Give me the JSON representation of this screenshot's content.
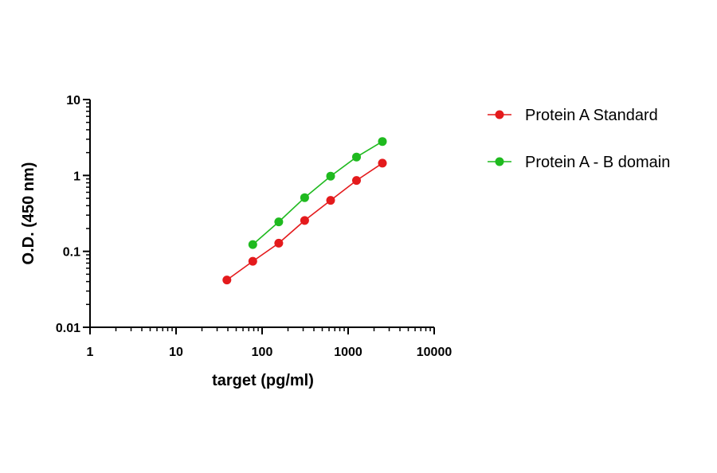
{
  "chart_data": {
    "type": "line",
    "title": "",
    "xlabel": "target (pg/ml)",
    "ylabel": "O.D. (450 nm)",
    "x_scale": "log",
    "y_scale": "log",
    "xlim": [
      1,
      10000
    ],
    "ylim": [
      0.01,
      10
    ],
    "x_ticks": [
      "1",
      "10",
      "100",
      "1000",
      "10000"
    ],
    "y_ticks": [
      "0.01",
      "0.1",
      "1",
      "10"
    ],
    "grid": false,
    "legend_position": "right",
    "series": [
      {
        "name": "Protein A Standard",
        "color": "#e41a1c",
        "x": [
          39,
          78,
          156,
          312,
          625,
          1250,
          2500
        ],
        "y": [
          0.042,
          0.074,
          0.128,
          0.255,
          0.47,
          0.86,
          1.45
        ]
      },
      {
        "name": "Protein A - B domain",
        "color": "#1fba1f",
        "x": [
          78,
          156,
          312,
          625,
          1250,
          2500
        ],
        "y": [
          0.123,
          0.245,
          0.51,
          0.98,
          1.75,
          2.8
        ]
      }
    ]
  }
}
